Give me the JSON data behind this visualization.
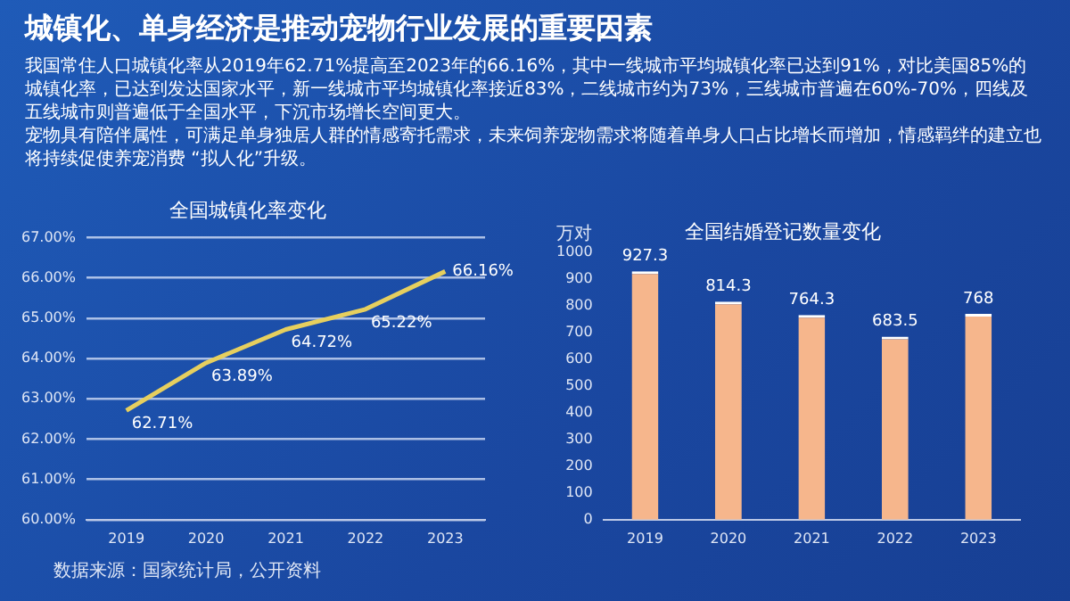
{
  "chart_data": [
    {
      "type": "other",
      "title": "城镇化、单身经济是推动宠物行业发展的重要因素",
      "annotations": [
        "我国常住人口城镇化率从2019年62.71%提高至2023年的66.16%，其中一线城市平均城镇化率已达到91%，对比美国85%的城镇化率，已达到发达国家水平，新一线城市平均城镇化率接近83%，二线城市约为73%，三线城市普遍在60%-70%，四线及五线城市则普遍低于全国水平，下沉市场增长空间更大。",
        "宠物具有陪伴属性，可满足单身独居人群的情感寄托需求，未来饲养宠物需求将随着单身人口占比增长而增加，情感羁绊的建立也将持续促使养宠消费 “拟人化”升级。"
      ]
    },
    {
      "type": "line",
      "title": "全国城镇化率变化",
      "categories": [
        "2019",
        "2020",
        "2021",
        "2022",
        "2023"
      ],
      "series": [
        {
          "color": "#e6cf5e",
          "values": [
            62.71,
            63.89,
            64.72,
            65.22,
            66.16
          ],
          "value_labels": [
            "62.71%",
            "63.89%",
            "64.72%",
            "65.22%",
            "66.16%"
          ]
        }
      ],
      "ylim": [
        60,
        67
      ],
      "yticks": [
        {
          "value": 60,
          "label": "60.00%"
        },
        {
          "value": 61,
          "label": "61.00%"
        },
        {
          "value": 62,
          "label": "62.00%"
        },
        {
          "value": 63,
          "label": "63.00%"
        },
        {
          "value": 64,
          "label": "64.00%"
        },
        {
          "value": 65,
          "label": "65.00%"
        },
        {
          "value": 66,
          "label": "66.00%"
        },
        {
          "value": 67,
          "label": "67.00%"
        }
      ],
      "grid": "y",
      "marker": "none",
      "legend": false,
      "annotations": [
        "数据来源：国家统计局，公开资料"
      ]
    },
    {
      "type": "bar",
      "title": "全国结婚登记数量变化",
      "ylabel": "万对",
      "categories": [
        "2019",
        "2020",
        "2021",
        "2022",
        "2023"
      ],
      "values": [
        927.3,
        814.3,
        764.3,
        683.5,
        768
      ],
      "color": "#f6b68c",
      "ylim": [
        0,
        1000
      ],
      "yticks": [
        0,
        100,
        200,
        300,
        400,
        500,
        600,
        700,
        800,
        900,
        1000
      ],
      "grid": false,
      "legend": false,
      "data_labels": true
    }
  ]
}
